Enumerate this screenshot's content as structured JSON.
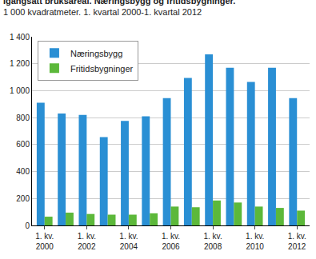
{
  "chart_data": {
    "type": "bar",
    "title": "Igangsatt bruksareal. Næringsbygg og fritidsbygninger.",
    "subtitle": "1 000 kvadratmeter. 1. kvartal 2000-1. kvartal 2012",
    "categories": [
      "1. kv.\n2000",
      null,
      "1. kv.\n2002",
      null,
      "1. kv.\n2004",
      null,
      "1. kv.\n2006",
      null,
      "1. kv.\n2008",
      null,
      "1. kv.\n2010",
      null,
      "1. kv.\n2012"
    ],
    "series": [
      {
        "name": "Næringsbygg",
        "color": "#2a8fd4",
        "values": [
          910,
          830,
          820,
          655,
          775,
          810,
          945,
          1095,
          1270,
          1170,
          1065,
          1170,
          945
        ]
      },
      {
        "name": "Fritidsbygninger",
        "color": "#5cb83a",
        "values": [
          65,
          95,
          85,
          80,
          80,
          90,
          140,
          135,
          185,
          170,
          140,
          130,
          110
        ]
      }
    ],
    "ylim": [
      0,
      1400
    ],
    "yticks": [
      0,
      200,
      400,
      600,
      800,
      {
        "value": 1000,
        "label": "1 000"
      },
      {
        "value": 1200,
        "label": "1 200"
      },
      {
        "value": 1400,
        "label": "1 400"
      }
    ],
    "grid": true,
    "legend": "upper left"
  }
}
